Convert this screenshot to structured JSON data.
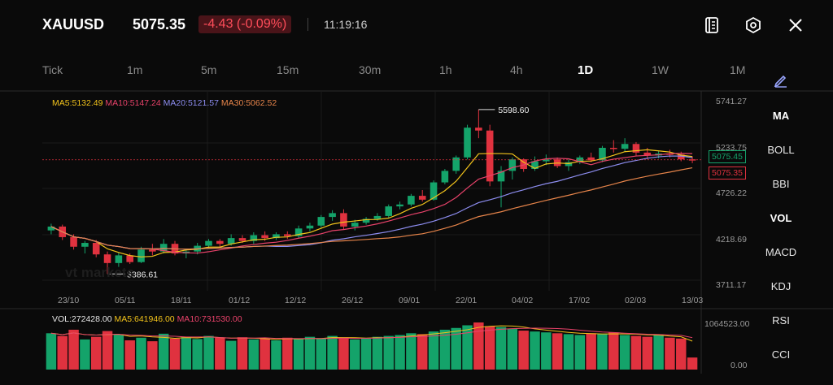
{
  "header": {
    "symbol": "XAUUSD",
    "price": "5075.35",
    "change": "-4.43 (-0.09%)",
    "time": "11:19:16"
  },
  "timeframes": [
    "Tick",
    "1m",
    "5m",
    "15m",
    "30m",
    "1h",
    "4h",
    "1D",
    "1W",
    "1M"
  ],
  "active_timeframe": "1D",
  "indicators": [
    "MA",
    "BOLL",
    "BBI",
    "VOL",
    "MACD",
    "KDJ",
    "RSI",
    "CCI"
  ],
  "ma_legend": {
    "ma5": "MA5:5132.49",
    "ma10": "MA10:5147.24",
    "ma20": "MA20:5121.57",
    "ma30": "MA30:5062.52"
  },
  "vol_legend": {
    "vol": "VOL:272428.00",
    "ma5": "MA5:641946.00",
    "ma10": "MA10:731530.00"
  },
  "y_ticks": [
    "5741.27",
    "5233.75",
    "4726.22",
    "4218.69",
    "3711.17"
  ],
  "vol_ticks": [
    "1064523.00",
    "0.00"
  ],
  "x_ticks": [
    "23/10",
    "05/11",
    "18/11",
    "01/12",
    "12/12",
    "26/12",
    "09/01",
    "22/01",
    "04/02",
    "17/02",
    "02/03",
    "13/03"
  ],
  "annotations": {
    "high": "5598.60",
    "low": "3886.61"
  },
  "price_tags": {
    "ask": "5075.45",
    "bid": "5075.35"
  },
  "watermark": "vt markets",
  "colors": {
    "up": "#14a36a",
    "down": "#e0323f",
    "ma5": "#f2c31b",
    "ma10": "#e8426a",
    "ma20": "#8d8df0",
    "ma30": "#e6844a"
  },
  "chart_data": {
    "type": "candlestick",
    "ylim": [
      3711.17,
      5741.27
    ],
    "series": [
      {
        "name": "OHLC",
        "values": [
          [
            4340,
            4410,
            4300,
            4380
          ],
          [
            4380,
            4400,
            4240,
            4270
          ],
          [
            4270,
            4300,
            4140,
            4170
          ],
          [
            4170,
            4230,
            4100,
            4210
          ],
          [
            4210,
            4240,
            4060,
            4090
          ],
          [
            4090,
            4120,
            3886.61,
            4000
          ],
          [
            4000,
            4110,
            3960,
            4080
          ],
          [
            4080,
            4100,
            3990,
            4010
          ],
          [
            4010,
            4170,
            4000,
            4140
          ],
          [
            4140,
            4200,
            4080,
            4120
          ],
          [
            4120,
            4250,
            4100,
            4200
          ],
          [
            4200,
            4230,
            4080,
            4100
          ],
          [
            4100,
            4150,
            4050,
            4120
          ],
          [
            4120,
            4210,
            4090,
            4180
          ],
          [
            4180,
            4250,
            4150,
            4230
          ],
          [
            4230,
            4250,
            4160,
            4200
          ],
          [
            4200,
            4300,
            4180,
            4260
          ],
          [
            4260,
            4290,
            4210,
            4230
          ],
          [
            4230,
            4320,
            4200,
            4290
          ],
          [
            4290,
            4330,
            4230,
            4260
          ],
          [
            4260,
            4320,
            4240,
            4300
          ],
          [
            4300,
            4330,
            4250,
            4280
          ],
          [
            4280,
            4390,
            4260,
            4360
          ],
          [
            4360,
            4420,
            4330,
            4390
          ],
          [
            4390,
            4500,
            4370,
            4480
          ],
          [
            4480,
            4550,
            4440,
            4520
          ],
          [
            4520,
            4560,
            4350,
            4380
          ],
          [
            4380,
            4450,
            4340,
            4420
          ],
          [
            4420,
            4480,
            4400,
            4460
          ],
          [
            4460,
            4520,
            4440,
            4490
          ],
          [
            4490,
            4610,
            4470,
            4590
          ],
          [
            4590,
            4640,
            4560,
            4610
          ],
          [
            4610,
            4720,
            4590,
            4700
          ],
          [
            4700,
            4760,
            4640,
            4660
          ],
          [
            4660,
            4860,
            4650,
            4840
          ],
          [
            4840,
            4980,
            4820,
            4960
          ],
          [
            4960,
            5120,
            4930,
            5100
          ],
          [
            5100,
            5440,
            5080,
            5410
          ],
          [
            5410,
            5598.6,
            5300,
            5380
          ],
          [
            5380,
            5440,
            4800,
            4850
          ],
          [
            4850,
            5010,
            4580,
            4960
          ],
          [
            4960,
            5100,
            4870,
            5080
          ],
          [
            5080,
            5090,
            4950,
            4980
          ],
          [
            4980,
            5110,
            4960,
            5060
          ],
          [
            5060,
            5130,
            5020,
            5080
          ],
          [
            5080,
            5100,
            4990,
            5010
          ],
          [
            5010,
            5080,
            4960,
            5050
          ],
          [
            5050,
            5120,
            5030,
            5100
          ],
          [
            5100,
            5150,
            5050,
            5070
          ],
          [
            5070,
            5220,
            5050,
            5200
          ],
          [
            5200,
            5280,
            5150,
            5190
          ],
          [
            5190,
            5300,
            5160,
            5240
          ],
          [
            5240,
            5260,
            5120,
            5150
          ],
          [
            5150,
            5200,
            5080,
            5120
          ],
          [
            5120,
            5170,
            5090,
            5140
          ],
          [
            5140,
            5180,
            5100,
            5130
          ],
          [
            5130,
            5160,
            5060,
            5080
          ],
          [
            5080,
            5110,
            5040,
            5075.35
          ]
        ]
      },
      {
        "name": "VOL",
        "values": [
          820,
          760,
          900,
          680,
          740,
          870,
          800,
          660,
          720,
          640,
          810,
          700,
          740,
          690,
          760,
          720,
          650,
          730,
          680,
          700,
          660,
          720,
          690,
          740,
          700,
          760,
          720,
          680,
          700,
          740,
          760,
          780,
          820,
          800,
          860,
          900,
          940,
          1000,
          1064,
          980,
          960,
          920,
          880,
          860,
          840,
          820,
          800,
          780,
          820,
          800,
          840,
          780,
          760,
          740,
          780,
          720,
          700,
          272
        ]
      }
    ]
  }
}
